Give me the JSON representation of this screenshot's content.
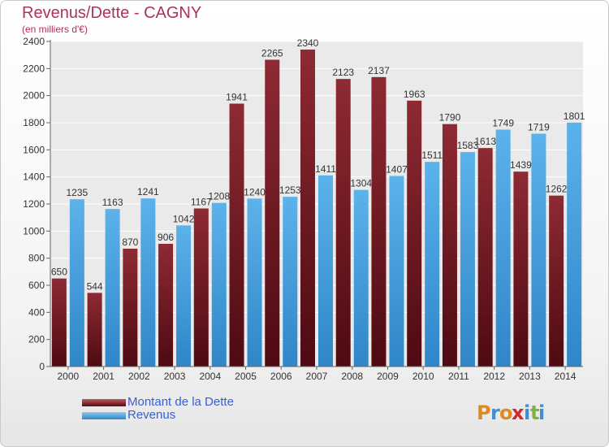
{
  "title": "Revenus/Dette - CAGNY",
  "subtitle": "(en milliers d'€)",
  "legend": {
    "dette_label": "Montant de la Dette",
    "revenus_label": "Revenus"
  },
  "logo": {
    "text": "Proxiti",
    "letters": [
      "P",
      "r",
      "o",
      "x",
      "i",
      "t",
      "i"
    ],
    "letter_colors": [
      "#e08a1e",
      "#3d8fd6",
      "#e08a1e",
      "#d02a2a",
      "#3d8fd6",
      "#7cb342",
      "#3d8fd6"
    ]
  },
  "chart_data": {
    "type": "bar",
    "categories": [
      "2000",
      "2001",
      "2002",
      "2003",
      "2004",
      "2005",
      "2006",
      "2007",
      "2008",
      "2009",
      "2010",
      "2011",
      "2012",
      "2013",
      "2014"
    ],
    "series": [
      {
        "name": "Montant de la Dette",
        "values": [
          650,
          544,
          870,
          906,
          1167,
          1941,
          2265,
          2340,
          2123,
          2137,
          1963,
          1790,
          1613,
          1439,
          1262
        ],
        "labels": [
          "650",
          "544",
          "870",
          "906",
          "1167",
          "1941",
          "2265",
          "2340",
          "2123",
          "2137",
          "1963",
          "1790",
          "1613",
          "1439",
          "1262"
        ],
        "color": "#7b1e28"
      },
      {
        "name": "Revenus",
        "values": [
          1235,
          1163,
          1241,
          1042,
          1208,
          1240,
          1253,
          1411,
          1304,
          1407,
          1511,
          1583,
          1749,
          1719,
          1801
        ],
        "labels": [
          "1235",
          "1163",
          "1241",
          "1042",
          "1208",
          "1240",
          "1253",
          "1411",
          "1304",
          "1407",
          "1511",
          "1583",
          "1749",
          "1719",
          "1801"
        ],
        "color": "#4aa3df"
      }
    ],
    "ylim": [
      0,
      2400
    ],
    "yticks": [
      0,
      200,
      400,
      600,
      800,
      1000,
      1200,
      1400,
      1600,
      1800,
      2000,
      2200,
      2400
    ],
    "grid": true,
    "legend_position": "bottom-left",
    "xlabel": "",
    "ylabel": ""
  }
}
